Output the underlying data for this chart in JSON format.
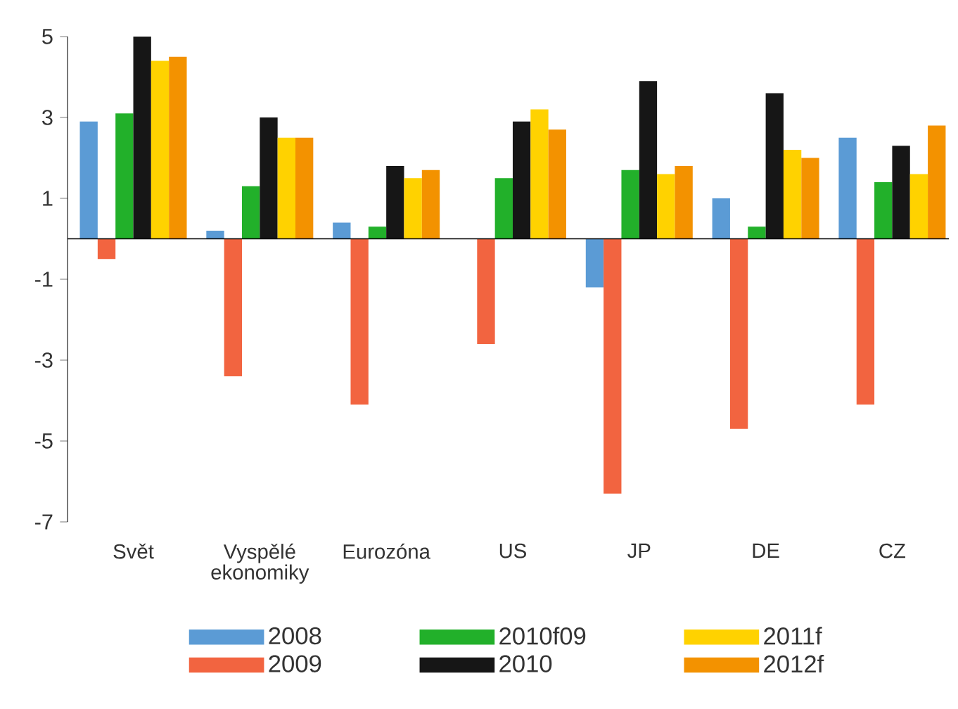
{
  "chart_data": {
    "type": "bar",
    "categories": [
      "Svět",
      "Vyspělé ekonomiky",
      "Eurozóna",
      "US",
      "JP",
      "DE",
      "CZ"
    ],
    "series": [
      {
        "name": "2008",
        "color": "#5b9bd5",
        "values": [
          2.9,
          0.2,
          0.4,
          0,
          -1.2,
          1.0,
          2.5
        ]
      },
      {
        "name": "2009",
        "color": "#f26440",
        "values": [
          -0.5,
          -3.4,
          -4.1,
          -2.6,
          -6.3,
          -4.7,
          -4.1
        ]
      },
      {
        "name": "2010f09",
        "color": "#22b02a",
        "values": [
          3.1,
          1.3,
          0.3,
          1.5,
          1.7,
          0.3,
          1.4
        ]
      },
      {
        "name": "2010",
        "color": "#161616",
        "values": [
          5.0,
          3.0,
          1.8,
          2.9,
          3.9,
          3.6,
          2.3
        ]
      },
      {
        "name": "2011f",
        "color": "#ffd200",
        "values": [
          4.4,
          2.5,
          1.5,
          3.2,
          1.6,
          2.2,
          1.6
        ]
      },
      {
        "name": "2012f",
        "color": "#f39200",
        "values": [
          4.5,
          2.5,
          1.7,
          2.7,
          1.8,
          2.0,
          2.8
        ]
      }
    ],
    "ylim": [
      -7,
      5
    ],
    "yticks": [
      -7,
      -5,
      -3,
      -1,
      1,
      3,
      5
    ],
    "legend": "bottom"
  }
}
